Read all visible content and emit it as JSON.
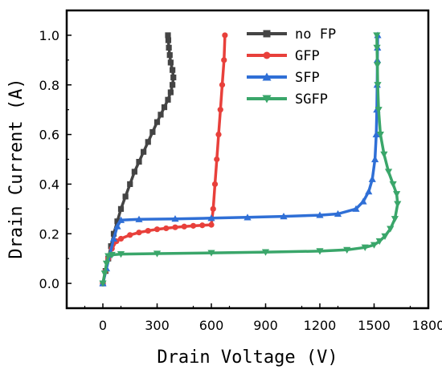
{
  "chart_data": {
    "type": "line",
    "title": "",
    "xlabel": "Drain Voltage (V)",
    "ylabel": "Drain Current (A)",
    "xlim": [
      -200,
      1800
    ],
    "ylim": [
      -0.1,
      1.1
    ],
    "x_ticks": [
      0,
      300,
      600,
      900,
      1200,
      1500,
      1800
    ],
    "y_ticks": [
      0.0,
      0.2,
      0.4,
      0.6,
      0.8,
      1.0
    ],
    "x_tick_labels": [
      "0",
      "300",
      "600",
      "900",
      "1200",
      "1500",
      "1800"
    ],
    "y_tick_labels": [
      "0.0",
      "0.2",
      "0.4",
      "0.6",
      "0.8",
      "1.0"
    ],
    "grid": false,
    "legend_position": "top-right",
    "series": [
      {
        "name": "no FP",
        "color": "#444444",
        "marker": "square",
        "x": [
          0,
          15,
          30,
          45,
          60,
          80,
          100,
          125,
          150,
          175,
          200,
          225,
          250,
          275,
          300,
          320,
          340,
          360,
          375,
          385,
          390,
          385,
          375,
          370,
          365,
          362,
          360
        ],
        "y": [
          0.0,
          0.05,
          0.1,
          0.15,
          0.2,
          0.25,
          0.3,
          0.35,
          0.4,
          0.45,
          0.49,
          0.53,
          0.57,
          0.61,
          0.65,
          0.68,
          0.71,
          0.74,
          0.77,
          0.8,
          0.83,
          0.86,
          0.89,
          0.92,
          0.95,
          0.98,
          1.0
        ]
      },
      {
        "name": "GFP",
        "color": "#e8403b",
        "marker": "circle",
        "x": [
          0,
          15,
          30,
          50,
          75,
          100,
          150,
          200,
          250,
          300,
          350,
          400,
          450,
          500,
          550,
          600,
          610,
          620,
          630,
          640,
          650,
          660,
          670,
          675
        ],
        "y": [
          0.0,
          0.05,
          0.1,
          0.14,
          0.17,
          0.18,
          0.195,
          0.205,
          0.212,
          0.218,
          0.222,
          0.226,
          0.229,
          0.232,
          0.234,
          0.236,
          0.3,
          0.4,
          0.5,
          0.6,
          0.7,
          0.8,
          0.9,
          1.0
        ]
      },
      {
        "name": "SFP",
        "color": "#2f6fd6",
        "marker": "triangle-up",
        "x": [
          0,
          20,
          40,
          60,
          80,
          100,
          200,
          400,
          600,
          800,
          1000,
          1200,
          1300,
          1400,
          1440,
          1470,
          1490,
          1505,
          1512,
          1515,
          1517,
          1518,
          1519,
          1520
        ],
        "y": [
          0.0,
          0.06,
          0.12,
          0.18,
          0.23,
          0.255,
          0.258,
          0.26,
          0.263,
          0.266,
          0.27,
          0.275,
          0.28,
          0.3,
          0.33,
          0.37,
          0.42,
          0.5,
          0.6,
          0.7,
          0.8,
          0.9,
          0.95,
          1.0
        ]
      },
      {
        "name": "SGFP",
        "color": "#3aa66a",
        "marker": "triangle-down",
        "x": [
          0,
          10,
          20,
          30,
          50,
          100,
          300,
          600,
          900,
          1200,
          1350,
          1450,
          1500,
          1530,
          1560,
          1590,
          1615,
          1630,
          1625,
          1605,
          1580,
          1555,
          1535,
          1525,
          1520,
          1518,
          1516,
          1515
        ],
        "y": [
          0.0,
          0.04,
          0.08,
          0.11,
          0.115,
          0.118,
          0.12,
          0.123,
          0.126,
          0.13,
          0.135,
          0.145,
          0.155,
          0.17,
          0.19,
          0.22,
          0.26,
          0.32,
          0.36,
          0.4,
          0.45,
          0.52,
          0.6,
          0.7,
          0.8,
          0.88,
          0.95,
          1.0
        ]
      }
    ]
  }
}
